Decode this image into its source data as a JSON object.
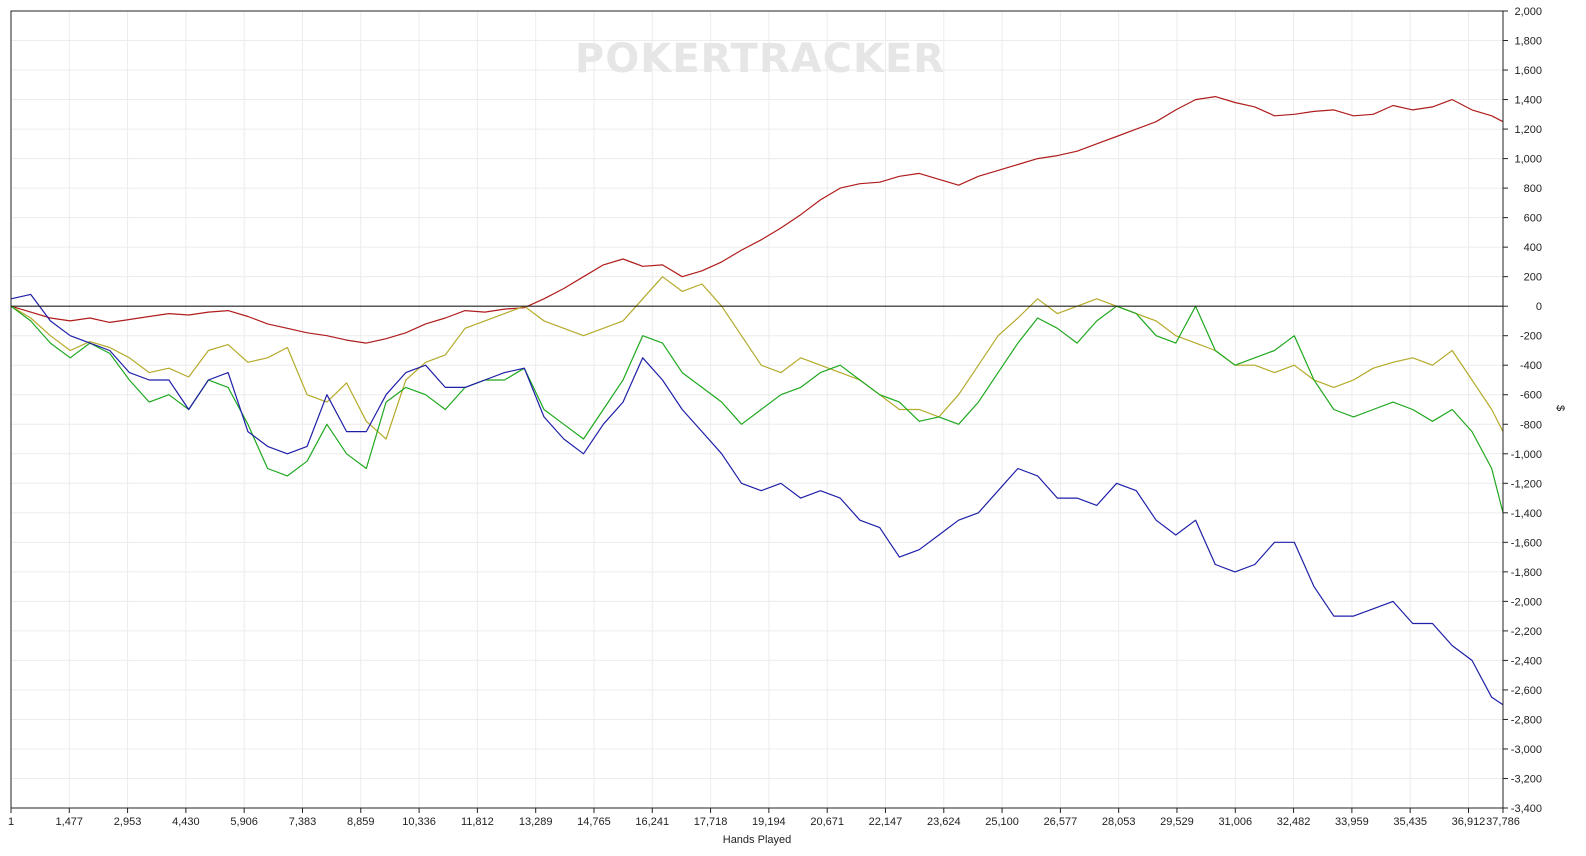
{
  "watermark": "POKERTRACKER",
  "chart_data": {
    "type": "line",
    "title": "",
    "xlabel": "Hands Played",
    "ylabel": "$",
    "xlim": [
      1,
      37786
    ],
    "ylim": [
      -3400,
      2000
    ],
    "x_ticks": [
      1,
      1477,
      2953,
      4430,
      5906,
      7383,
      8859,
      10336,
      11812,
      13289,
      14765,
      16241,
      17718,
      19194,
      20671,
      22147,
      23624,
      25100,
      26577,
      28053,
      29529,
      31006,
      32482,
      33959,
      35435,
      36912,
      37786
    ],
    "x_tick_labels": [
      "1",
      "1,477",
      "2,953",
      "4,430",
      "5,906",
      "7,383",
      "8,859",
      "10,336",
      "11,812",
      "13,289",
      "14,765",
      "16,241",
      "17,718",
      "19,194",
      "20,671",
      "22,147",
      "23,624",
      "25,100",
      "26,577",
      "28,053",
      "29,529",
      "31,006",
      "32,482",
      "33,959",
      "35,435",
      "36,912",
      "37,786"
    ],
    "y_ticks": [
      2000,
      1800,
      1600,
      1400,
      1200,
      1000,
      800,
      600,
      400,
      200,
      0,
      -200,
      -400,
      -600,
      -800,
      -1000,
      -1200,
      -1400,
      -1600,
      -1800,
      -2000,
      -2200,
      -2400,
      -2600,
      -2800,
      -3000,
      -3200,
      -3400
    ],
    "y_tick_labels": [
      "2,000",
      "1,800",
      "1,600",
      "1,400",
      "1,200",
      "1,000",
      "800",
      "600",
      "400",
      "200",
      "0",
      "-200",
      "-400",
      "-600",
      "-800",
      "-1,000",
      "-1,200",
      "-1,400",
      "-1,600",
      "-1,800",
      "-2,000",
      "-2,200",
      "-2,400",
      "-2,600",
      "-2,800",
      "-3,000",
      "-3,200",
      "-3,400"
    ],
    "grid": true,
    "zero_line": true,
    "series": [
      {
        "color": "#b01c1c",
        "x": [
          1,
          500,
          1000,
          1500,
          2000,
          2500,
          3000,
          3500,
          4000,
          4500,
          5000,
          5500,
          6000,
          6500,
          7000,
          7500,
          8000,
          8500,
          9000,
          9500,
          10000,
          10500,
          11000,
          11500,
          12000,
          12500,
          13000,
          13500,
          14000,
          14500,
          15000,
          15500,
          16000,
          16500,
          17000,
          17500,
          18000,
          18500,
          19000,
          19500,
          20000,
          20500,
          21000,
          21500,
          22000,
          22500,
          23000,
          23500,
          24000,
          24500,
          25000,
          25500,
          26000,
          26500,
          27000,
          27500,
          28000,
          28500,
          29000,
          29500,
          30000,
          30500,
          31000,
          31500,
          32000,
          32500,
          33000,
          33500,
          34000,
          34500,
          35000,
          35500,
          36000,
          36500,
          37000,
          37500,
          37786
        ],
        "y": [
          0,
          -40,
          -80,
          -100,
          -80,
          -110,
          -90,
          -70,
          -50,
          -60,
          -40,
          -30,
          -70,
          -120,
          -150,
          -180,
          -200,
          -230,
          -250,
          -220,
          -180,
          -120,
          -80,
          -30,
          -40,
          -20,
          -10,
          50,
          120,
          200,
          280,
          320,
          270,
          280,
          200,
          240,
          300,
          380,
          450,
          530,
          620,
          720,
          800,
          830,
          840,
          880,
          900,
          860,
          820,
          880,
          920,
          960,
          1000,
          1020,
          1050,
          1100,
          1150,
          1200,
          1250,
          1330,
          1400,
          1420,
          1380,
          1350,
          1290,
          1300,
          1320,
          1330,
          1290,
          1300,
          1360,
          1330,
          1350,
          1400,
          1330,
          1290,
          1250
        ]
      },
      {
        "color": "#b5aa2a",
        "x": [
          1,
          500,
          1000,
          1500,
          2000,
          2500,
          3000,
          3500,
          4000,
          4500,
          5000,
          5500,
          6000,
          6500,
          7000,
          7500,
          8000,
          8500,
          9000,
          9500,
          10000,
          10500,
          11000,
          11500,
          12000,
          12500,
          13000,
          13500,
          14000,
          14500,
          15000,
          15500,
          16000,
          16500,
          17000,
          17500,
          18000,
          18500,
          19000,
          19500,
          20000,
          20500,
          21000,
          21500,
          22000,
          22500,
          23000,
          23500,
          24000,
          24500,
          25000,
          25500,
          26000,
          26500,
          27000,
          27500,
          28000,
          28500,
          29000,
          29500,
          30000,
          30500,
          31000,
          31500,
          32000,
          32500,
          33000,
          33500,
          34000,
          34500,
          35000,
          35500,
          36000,
          36500,
          37000,
          37500,
          37786
        ],
        "y": [
          0,
          -80,
          -200,
          -300,
          -240,
          -280,
          -350,
          -450,
          -420,
          -480,
          -300,
          -260,
          -380,
          -350,
          -280,
          -600,
          -650,
          -520,
          -780,
          -900,
          -500,
          -380,
          -330,
          -150,
          -100,
          -50,
          0,
          -100,
          -150,
          -200,
          -150,
          -100,
          50,
          200,
          100,
          150,
          0,
          -200,
          -400,
          -450,
          -350,
          -400,
          -450,
          -500,
          -600,
          -700,
          -700,
          -750,
          -600,
          -400,
          -200,
          -80,
          50,
          -50,
          0,
          50,
          0,
          -50,
          -100,
          -200,
          -250,
          -300,
          -400,
          -400,
          -450,
          -400,
          -500,
          -550,
          -500,
          -420,
          -380,
          -350,
          -400,
          -300,
          -500,
          -700,
          -850
        ]
      },
      {
        "color": "#1fa81f",
        "x": [
          1,
          500,
          1000,
          1500,
          2000,
          2500,
          3000,
          3500,
          4000,
          4500,
          5000,
          5500,
          6000,
          6500,
          7000,
          7500,
          8000,
          8500,
          9000,
          9500,
          10000,
          10500,
          11000,
          11500,
          12000,
          12500,
          13000,
          13500,
          14000,
          14500,
          15000,
          15500,
          16000,
          16500,
          17000,
          17500,
          18000,
          18500,
          19000,
          19500,
          20000,
          20500,
          21000,
          21500,
          22000,
          22500,
          23000,
          23500,
          24000,
          24500,
          25000,
          25500,
          26000,
          26500,
          27000,
          27500,
          28000,
          28500,
          29000,
          29500,
          30000,
          30500,
          31000,
          31500,
          32000,
          32500,
          33000,
          33500,
          34000,
          34500,
          35000,
          35500,
          36000,
          36500,
          37000,
          37500,
          37786
        ],
        "y": [
          0,
          -100,
          -250,
          -350,
          -250,
          -320,
          -500,
          -650,
          -600,
          -700,
          -500,
          -550,
          -800,
          -1100,
          -1150,
          -1050,
          -800,
          -1000,
          -1100,
          -650,
          -550,
          -600,
          -700,
          -550,
          -500,
          -500,
          -420,
          -700,
          -800,
          -900,
          -700,
          -500,
          -200,
          -250,
          -450,
          -550,
          -650,
          -800,
          -700,
          -600,
          -550,
          -450,
          -400,
          -500,
          -600,
          -650,
          -780,
          -750,
          -800,
          -650,
          -450,
          -250,
          -80,
          -150,
          -250,
          -100,
          0,
          -50,
          -200,
          -250,
          0,
          -300,
          -400,
          -350,
          -300,
          -200,
          -500,
          -700,
          -750,
          -700,
          -650,
          -700,
          -780,
          -700,
          -850,
          -1100,
          -1400
        ]
      },
      {
        "color": "#1f1fa8",
        "x": [
          1,
          500,
          1000,
          1500,
          2000,
          2500,
          3000,
          3500,
          4000,
          4500,
          5000,
          5500,
          6000,
          6500,
          7000,
          7500,
          8000,
          8500,
          9000,
          9500,
          10000,
          10500,
          11000,
          11500,
          12000,
          12500,
          13000,
          13500,
          14000,
          14500,
          15000,
          15500,
          16000,
          16500,
          17000,
          17500,
          18000,
          18500,
          19000,
          19500,
          20000,
          20500,
          21000,
          21500,
          22000,
          22500,
          23000,
          23500,
          24000,
          24500,
          25000,
          25500,
          26000,
          26500,
          27000,
          27500,
          28000,
          28500,
          29000,
          29500,
          30000,
          30500,
          31000,
          31500,
          32000,
          32500,
          33000,
          33500,
          34000,
          34500,
          35000,
          35500,
          36000,
          36500,
          37000,
          37500,
          37786
        ],
        "y": [
          50,
          80,
          -100,
          -200,
          -250,
          -300,
          -450,
          -500,
          -500,
          -700,
          -500,
          -450,
          -850,
          -950,
          -1000,
          -950,
          -600,
          -850,
          -850,
          -600,
          -450,
          -400,
          -550,
          -550,
          -500,
          -450,
          -420,
          -750,
          -900,
          -1000,
          -800,
          -650,
          -350,
          -500,
          -700,
          -850,
          -1000,
          -1200,
          -1250,
          -1200,
          -1300,
          -1250,
          -1300,
          -1450,
          -1500,
          -1700,
          -1650,
          -1550,
          -1450,
          -1400,
          -1250,
          -1100,
          -1150,
          -1300,
          -1300,
          -1350,
          -1200,
          -1250,
          -1450,
          -1550,
          -1450,
          -1750,
          -1800,
          -1750,
          -1600,
          -1600,
          -1900,
          -2100,
          -2100,
          -2050,
          -2000,
          -2150,
          -2150,
          -2300,
          -2400,
          -2650,
          -2700
        ]
      }
    ]
  }
}
